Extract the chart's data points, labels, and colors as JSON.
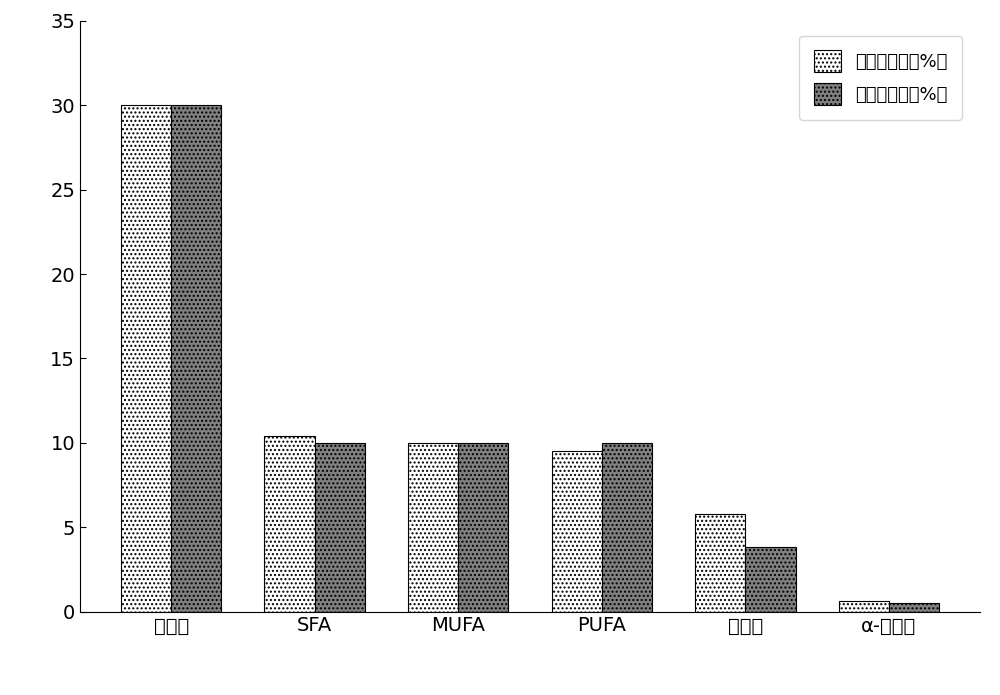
{
  "categories": [
    "总脂肪",
    "SFA",
    "MUFA",
    "PUFA",
    "亚油酸",
    "α-亚麻酸"
  ],
  "product_values": [
    30,
    10.4,
    10.0,
    9.5,
    5.8,
    0.6
  ],
  "recommended_values": [
    30,
    10.0,
    10.0,
    10.0,
    3.8,
    0.5
  ],
  "legend_labels": [
    "产品供能比（%）",
    "推荐供能比（%）"
  ],
  "ylim": [
    0,
    35
  ],
  "yticks": [
    0,
    5,
    10,
    15,
    20,
    25,
    30,
    35
  ],
  "bar_width": 0.35,
  "product_color": "#ffffff",
  "product_hatch": "....",
  "recommended_color": "#808080",
  "recommended_hatch": "....",
  "background_color": "#ffffff",
  "tick_fontsize": 14,
  "legend_fontsize": 13,
  "xtick_fontsize": 14
}
